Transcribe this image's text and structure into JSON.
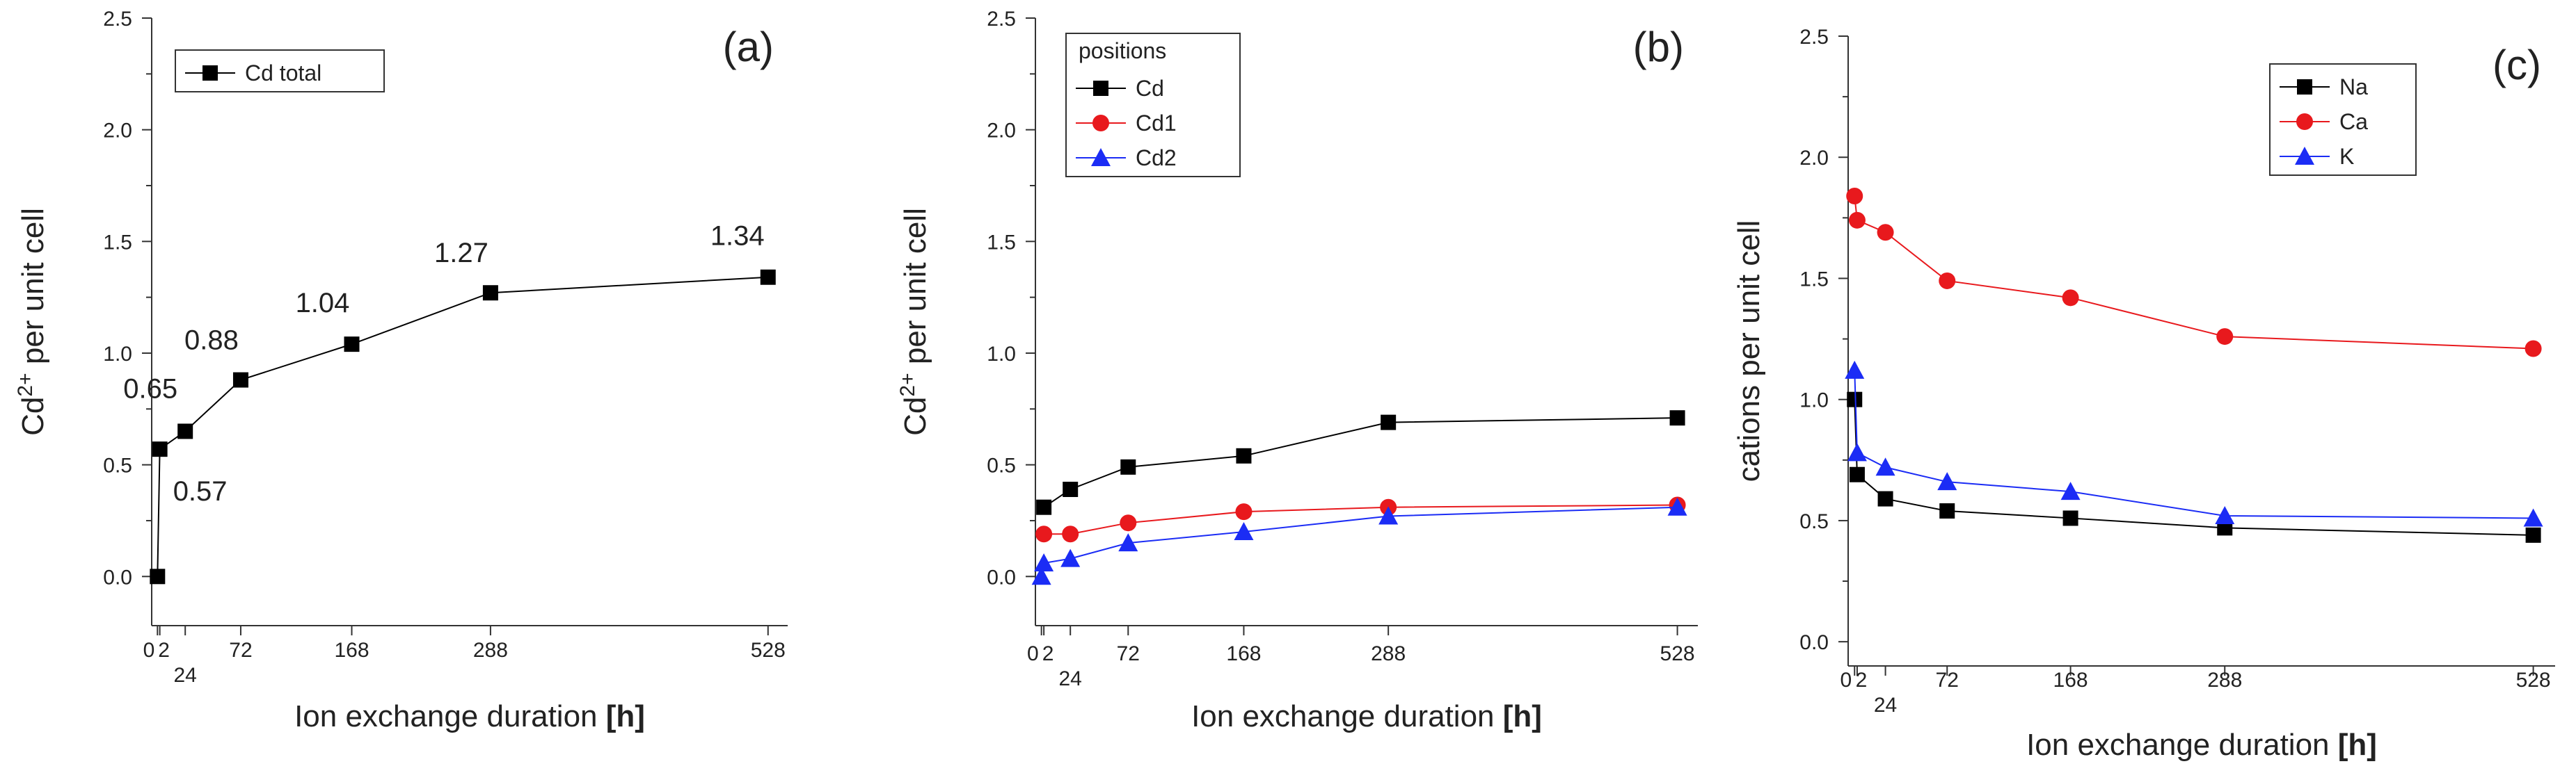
{
  "figure": {
    "panels": [
      {
        "letter": "(a)",
        "ylabel_main": "Cd",
        "ylabel_sup": "2+",
        "ylabel_rest": " per unit cell",
        "xlabel_main": "Ion exchange duration ",
        "xlabel_unit": "[h]"
      },
      {
        "letter": "(b)",
        "ylabel_main": "Cd",
        "ylabel_sup": "2+",
        "ylabel_rest": " per unit cell",
        "xlabel_main": "Ion exchange duration ",
        "xlabel_unit": "[h]"
      },
      {
        "letter": "(c)",
        "ylabel_main": "cations per unit cell",
        "ylabel_sup": "",
        "ylabel_rest": "",
        "xlabel_main": "Ion exchange duration ",
        "xlabel_unit": "[h]"
      }
    ]
  },
  "chart_data": [
    {
      "type": "line",
      "title": "(a)",
      "xlabel": "Ion exchange duration [h]",
      "ylabel": "Cd2+ per unit cell",
      "xlim": [
        -5,
        545
      ],
      "ylim": [
        -0.22,
        2.5
      ],
      "xticks": [
        0,
        2,
        24,
        72,
        168,
        288,
        528
      ],
      "xtick_labels": [
        "0",
        "2",
        "24",
        "72",
        "168",
        "288",
        "528"
      ],
      "yticks": [
        0.0,
        0.5,
        1.0,
        1.5,
        2.0,
        2.5
      ],
      "ytick_labels": [
        "0.0",
        "0.5",
        "1.0",
        "1.5",
        "2.0",
        "2.5"
      ],
      "legend": {
        "title": "",
        "placement": "top-left"
      },
      "series": [
        {
          "name": "Cd total",
          "color": "#000000",
          "marker": "square",
          "x": [
            0,
            2,
            24,
            72,
            168,
            288,
            528
          ],
          "y": [
            0.0,
            0.57,
            0.65,
            0.88,
            1.04,
            1.27,
            1.34
          ]
        }
      ],
      "data_labels": [
        "0.57",
        "0.65",
        "0.88",
        "1.04",
        "1.27",
        "1.34"
      ]
    },
    {
      "type": "line",
      "title": "(b)",
      "xlabel": "Ion exchange duration [h]",
      "ylabel": "Cd2+ per unit cell",
      "xlim": [
        -5,
        545
      ],
      "ylim": [
        -0.22,
        2.5
      ],
      "xticks": [
        0,
        2,
        24,
        72,
        168,
        288,
        528
      ],
      "xtick_labels": [
        "0",
        "2",
        "24",
        "72",
        "168",
        "288",
        "528"
      ],
      "yticks": [
        0.0,
        0.5,
        1.0,
        1.5,
        2.0,
        2.5
      ],
      "ytick_labels": [
        "0.0",
        "0.5",
        "1.0",
        "1.5",
        "2.0",
        "2.5"
      ],
      "legend": {
        "title": "positions",
        "placement": "top-left"
      },
      "series": [
        {
          "name": "Cd",
          "color": "#000000",
          "marker": "square",
          "x": [
            2,
            24,
            72,
            168,
            288,
            528
          ],
          "y": [
            0.31,
            0.39,
            0.49,
            0.54,
            0.69,
            0.71
          ]
        },
        {
          "name": "Cd1",
          "color": "#e8191d",
          "marker": "circle",
          "x": [
            2,
            24,
            72,
            168,
            288,
            528
          ],
          "y": [
            0.19,
            0.19,
            0.24,
            0.29,
            0.31,
            0.32
          ]
        },
        {
          "name": "Cd2",
          "color": "#1b2cf5",
          "marker": "triangle",
          "x": [
            0,
            2,
            24,
            72,
            168,
            288,
            528
          ],
          "y": [
            0.0,
            0.06,
            0.08,
            0.15,
            0.2,
            0.27,
            0.31
          ]
        }
      ]
    },
    {
      "type": "line",
      "title": "(c)",
      "xlabel": "Ion exchange duration [h]",
      "ylabel": "cations per unit cell",
      "xlim": [
        -5,
        545
      ],
      "ylim": [
        -0.1,
        2.5
      ],
      "xticks": [
        0,
        2,
        24,
        72,
        168,
        288,
        528
      ],
      "xtick_labels": [
        "0",
        "2",
        "24",
        "72",
        "168",
        "288",
        "528"
      ],
      "yticks": [
        0.0,
        0.5,
        1.0,
        1.5,
        2.0,
        2.5
      ],
      "ytick_labels": [
        "0.0",
        "0.5",
        "1.0",
        "1.5",
        "2.0",
        "2.5"
      ],
      "legend": {
        "title": "",
        "placement": "top-right"
      },
      "series": [
        {
          "name": "Na",
          "color": "#000000",
          "marker": "square",
          "x": [
            0,
            2,
            24,
            72,
            168,
            288,
            528
          ],
          "y": [
            1.0,
            0.69,
            0.59,
            0.54,
            0.51,
            0.47,
            0.44
          ]
        },
        {
          "name": "Ca",
          "color": "#e8191d",
          "marker": "circle",
          "x": [
            0,
            2,
            24,
            72,
            168,
            288,
            528
          ],
          "y": [
            1.84,
            1.74,
            1.69,
            1.49,
            1.42,
            1.26,
            1.21
          ]
        },
        {
          "name": "K",
          "color": "#1b2cf5",
          "marker": "triangle",
          "x": [
            0,
            2,
            24,
            72,
            168,
            288,
            528
          ],
          "y": [
            1.12,
            0.78,
            0.72,
            0.66,
            0.62,
            0.52,
            0.51
          ]
        }
      ]
    }
  ]
}
